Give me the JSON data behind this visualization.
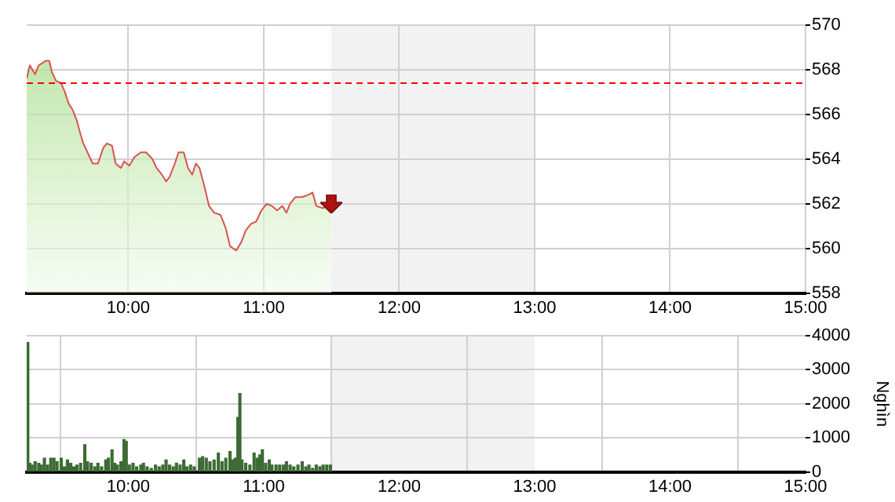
{
  "chart_data": [
    {
      "type": "area",
      "x": [
        9.25,
        9.273,
        9.312,
        9.339,
        9.389,
        9.416,
        9.436,
        9.467,
        9.505,
        9.532,
        9.559,
        9.59,
        9.621,
        9.648,
        9.668,
        9.699,
        9.737,
        9.776,
        9.815,
        9.842,
        9.88,
        9.907,
        9.946,
        9.969,
        10.008,
        10.047,
        10.093,
        10.132,
        10.178,
        10.209,
        10.248,
        10.279,
        10.305,
        10.344,
        10.371,
        10.41,
        10.441,
        10.472,
        10.499,
        10.526,
        10.565,
        10.596,
        10.634,
        10.681,
        10.72,
        10.751,
        10.797,
        10.836,
        10.867,
        10.906,
        10.944,
        10.983,
        11.022,
        11.06,
        11.099,
        11.137,
        11.168,
        11.195,
        11.234,
        11.284,
        11.33,
        11.361,
        11.388,
        11.439,
        11.485,
        11.5
      ],
      "series": [
        {
          "color": "#d9534f",
          "values": [
            567.6,
            568.2,
            567.8,
            568.2,
            568.4,
            568.4,
            567.9,
            567.5,
            567.4,
            567.0,
            566.5,
            566.2,
            565.7,
            565.1,
            564.7,
            564.3,
            563.8,
            563.8,
            564.5,
            564.7,
            564.6,
            563.8,
            563.6,
            563.9,
            563.7,
            564.1,
            564.3,
            564.3,
            564.0,
            563.6,
            563.3,
            563.0,
            563.2,
            563.8,
            564.3,
            564.3,
            563.6,
            563.3,
            563.8,
            563.6,
            562.7,
            561.9,
            561.6,
            561.5,
            560.9,
            560.1,
            559.9,
            560.3,
            560.8,
            561.1,
            561.2,
            561.7,
            562.0,
            561.9,
            561.7,
            561.9,
            561.6,
            562.0,
            562.3,
            562.3,
            562.4,
            562.5,
            561.9,
            561.8,
            562.0,
            562.0
          ]
        }
      ],
      "xlim": [
        9.25,
        15
      ],
      "xticks": [
        {
          "value": 10,
          "label": "10:00"
        },
        {
          "value": 11,
          "label": "11:00"
        },
        {
          "value": 12,
          "label": "12:00"
        },
        {
          "value": 13,
          "label": "13:00"
        },
        {
          "value": 14,
          "label": "14:00"
        },
        {
          "value": 15,
          "label": "15:00"
        }
      ],
      "ylim": [
        558,
        570
      ],
      "yticks": [
        558,
        560,
        562,
        564,
        566,
        568,
        570
      ],
      "grid": true,
      "legend": false,
      "ref_lines": [
        {
          "axis": "y",
          "value": 567.4,
          "color": "#ff0000",
          "line_style": "dashed"
        }
      ],
      "bands": [
        {
          "axis": "x",
          "from": 11.5,
          "to": 13,
          "color": "#f2f2f2"
        }
      ]
    },
    {
      "type": "bar",
      "ylabel": "Nghìn",
      "color": "#3d6b35",
      "x": [
        9.258,
        9.273,
        9.289,
        9.312,
        9.339,
        9.358,
        9.381,
        9.404,
        9.428,
        9.451,
        9.474,
        9.505,
        9.528,
        9.551,
        9.575,
        9.598,
        9.621,
        9.648,
        9.679,
        9.699,
        9.726,
        9.753,
        9.776,
        9.803,
        9.834,
        9.853,
        9.88,
        9.9,
        9.919,
        9.946,
        9.969,
        9.985,
        10.008,
        10.035,
        10.062,
        10.093,
        10.112,
        10.139,
        10.17,
        10.201,
        10.228,
        10.255,
        10.279,
        10.305,
        10.332,
        10.356,
        10.383,
        10.41,
        10.433,
        10.46,
        10.487,
        10.526,
        10.549,
        10.576,
        10.603,
        10.634,
        10.665,
        10.692,
        10.72,
        10.751,
        10.772,
        10.79,
        10.809,
        10.824,
        10.839,
        10.867,
        10.898,
        10.929,
        10.952,
        10.971,
        10.99,
        11.014,
        11.041,
        11.06,
        11.091,
        11.118,
        11.145,
        11.168,
        11.195,
        11.222,
        11.253,
        11.284,
        11.311,
        11.334,
        11.361,
        11.388,
        11.415,
        11.439,
        11.466,
        11.493
      ],
      "values": [
        3800,
        250,
        200,
        300,
        250,
        200,
        400,
        200,
        400,
        400,
        300,
        400,
        150,
        350,
        250,
        150,
        200,
        250,
        800,
        300,
        250,
        150,
        250,
        150,
        350,
        400,
        650,
        250,
        200,
        300,
        950,
        900,
        200,
        250,
        150,
        200,
        250,
        150,
        100,
        200,
        150,
        200,
        350,
        200,
        150,
        250,
        200,
        350,
        150,
        200,
        150,
        400,
        450,
        400,
        300,
        350,
        550,
        300,
        400,
        600,
        350,
        400,
        1600,
        2300,
        350,
        250,
        200,
        550,
        400,
        500,
        650,
        250,
        350,
        200,
        200,
        200,
        200,
        300,
        200,
        150,
        200,
        300,
        150,
        200,
        100,
        200,
        150,
        200,
        200,
        200
      ],
      "xlim": [
        9.25,
        15
      ],
      "xticks": [
        {
          "value": 10,
          "label": "10:00"
        },
        {
          "value": 11,
          "label": "11:00"
        },
        {
          "value": 12,
          "label": "12:00"
        },
        {
          "value": 13,
          "label": "13:00"
        },
        {
          "value": 14,
          "label": "14:00"
        },
        {
          "value": 15,
          "label": "15:00"
        }
      ],
      "ylim": [
        0,
        4000
      ],
      "yticks": [
        0,
        1000,
        2000,
        3000,
        4000
      ],
      "grid": true,
      "legend": false,
      "bands": [
        {
          "axis": "x",
          "from": 11.5,
          "to": 13,
          "color": "#f2f2f2"
        }
      ]
    }
  ]
}
